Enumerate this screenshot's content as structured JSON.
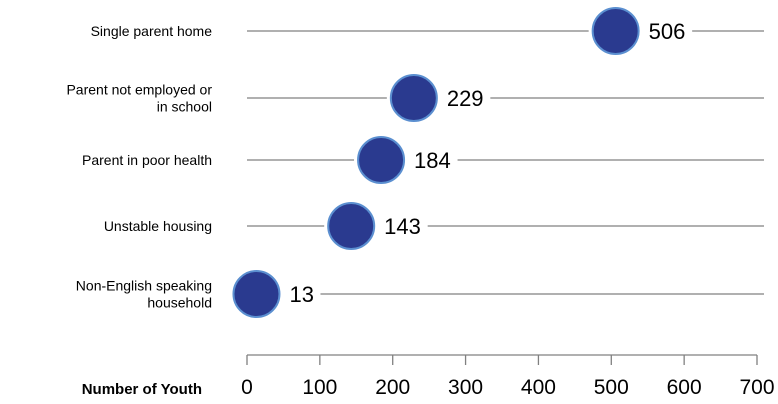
{
  "chart_data": {
    "type": "scatter",
    "orientation": "horizontal-dot",
    "categories": [
      [
        "Single parent home"
      ],
      [
        "Parent not employed or",
        "in school"
      ],
      [
        "Parent in poor health"
      ],
      [
        "Unstable housing"
      ],
      [
        "Non-English speaking",
        "household"
      ]
    ],
    "values": [
      506,
      229,
      184,
      143,
      13
    ],
    "data_labels": [
      "506",
      "229",
      "184",
      "143",
      "13"
    ],
    "xlabel": "Number of Youth",
    "xlim": [
      0,
      700
    ],
    "xticks": [
      0,
      100,
      200,
      300,
      400,
      500,
      600,
      700
    ],
    "grid": false,
    "legend": "none",
    "colors": {
      "marker_fill": "#2a3a8f",
      "marker_stroke": "#5b8fd0",
      "guide_line": "#808080",
      "axis": "#808080"
    }
  }
}
